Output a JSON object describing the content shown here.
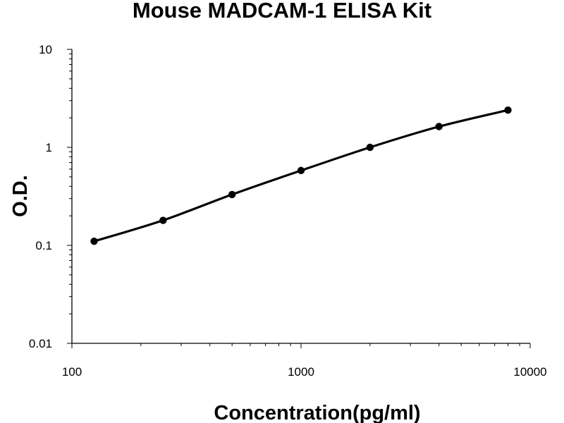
{
  "chart_data": {
    "type": "line",
    "title": "Mouse MADCAM-1 ELISA Kit",
    "xlabel": "Concentration(pg/ml)",
    "ylabel": "O.D.",
    "x_scale": "log",
    "y_scale": "log",
    "xlim": [
      100,
      10000
    ],
    "ylim": [
      0.01,
      10
    ],
    "x_ticks": [
      100,
      1000,
      10000
    ],
    "x_tick_labels": [
      "100",
      "1000",
      "10000"
    ],
    "y_ticks": [
      0.01,
      0.1,
      1,
      10
    ],
    "y_tick_labels": [
      "0.01",
      "0.1",
      "1",
      "10"
    ],
    "grid": false,
    "legend": "none",
    "series": [
      {
        "x": [
          125,
          250,
          500,
          1000,
          2000,
          4000,
          8000
        ],
        "y": [
          0.11,
          0.18,
          0.33,
          0.58,
          1.0,
          1.63,
          2.4
        ]
      }
    ],
    "colors": {
      "line": "#000000",
      "marker": "#000000",
      "axis": "#000000",
      "background": "#ffffff"
    }
  }
}
